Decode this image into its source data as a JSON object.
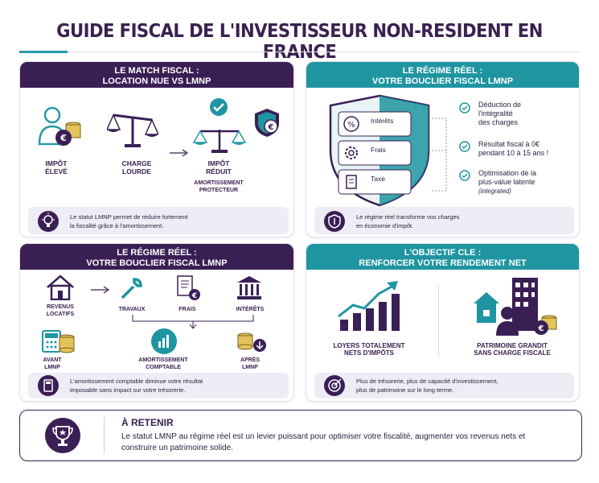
{
  "title": "GUIDE FISCAL DE L'INVESTISSEUR NON-RESIDENT EN FRANCE",
  "panel1": {
    "header_line1": "LE MATCH FISCAL :",
    "header_line2": "LOCATION NUE VS LMNP",
    "impot_eleve": [
      "IMPÔT",
      "ÉLEVÉ"
    ],
    "charge_lourde": [
      "CHARGE",
      "LOURDE"
    ],
    "impot_reduit": [
      "IMPÔT",
      "RÉDUIT"
    ],
    "amortissement": [
      "AMORTISSEMENT",
      "PROTECTEUR"
    ],
    "note": [
      "Le statut LMNP permet de réduire fortement",
      "la fiscalité grâce à l'amortissement."
    ]
  },
  "panel2": {
    "header_line1": "LE RÉGIME RÉEL :",
    "header_line2": "VOTRE BOUCLIER FISCAL LMNP",
    "shield_items": [
      "Intérêts",
      "Frais",
      "Taxe"
    ],
    "checks": [
      [
        "Déduction de",
        "l'intégralité",
        "des charges"
      ],
      [
        "Résultat fiscal à 0€",
        "pendant 10 à 15 ans !"
      ],
      [
        "Optimisation de la",
        "plus-value latente"
      ]
    ],
    "integrated": "(integrated)",
    "note": [
      "Le régime réel transforme vos charges",
      "en économie d'impôt."
    ]
  },
  "panel3": {
    "header_line1": "LE RÉGIME RÉEL :",
    "header_line2": "VOTRE BOUCLIER FISCAL LMNP",
    "revenus": [
      "REVENUS",
      "LOCATIFS"
    ],
    "travaux": "TRAVAUX",
    "frais": "FRAIS",
    "interets": "INTÉRÊTS",
    "avant": [
      "AVANT",
      "LMNP"
    ],
    "amort": [
      "AMORTISSEMENT",
      "COMPTABLE"
    ],
    "apres": [
      "APRÈS",
      "LMNP"
    ],
    "note": [
      "L'amortissement comptable diminue votre résultat",
      "imposable sans impact sur votre trésorerie."
    ]
  },
  "panel4": {
    "header_line1": "L'OBJECTIF CLE :",
    "header_line2": "RENFORCER VOTRE RENDEMENT NET",
    "loyers": [
      "LOYERS TOTALEMENT",
      "NETS D'IMPÔTS"
    ],
    "patrimoine": [
      "PATRIMOINE GRANDIT",
      "SANS CHARGE FISCALE"
    ],
    "note": [
      "Plus de trésorerie, plus de capacité d'investissement,",
      "plus de patrimoine sur le long terme."
    ]
  },
  "retenir": {
    "title": "À RETENIR",
    "body": "Le statut LMNP au régime réel est un levier puissant pour optimiser votre fiscalité, augmenter vos revenus nets et construire un patrimoine solide."
  },
  "colors": {
    "purple": "#3a1f55",
    "teal": "#1f95a1",
    "gold": "#c9a227"
  }
}
